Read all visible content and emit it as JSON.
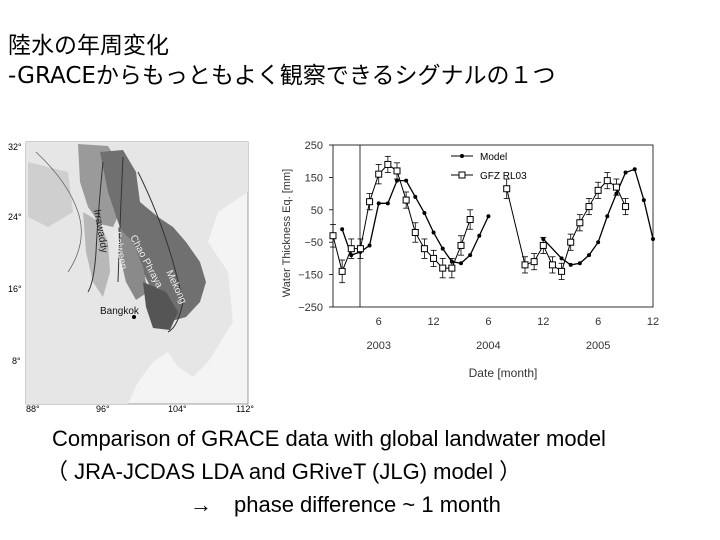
{
  "slide": {
    "title_line1": "陸水の年周変化",
    "title_line2": "-GRACEからもっともよく観察できるシグナルの１つ",
    "caption_line1": "Comparison of GRACE data with global landwater model",
    "caption_line2": "（ JRA-JCDAS LDA and GRiveT (JLG) model ）",
    "caption_line3": "→　phase difference ~ 1 month"
  },
  "map": {
    "lat_labels": [
      "32°",
      "24°",
      "16°",
      "8°"
    ],
    "lon_labels": [
      "88°",
      "96°",
      "104°",
      "112°"
    ],
    "river_labels": [
      "Irrawaddy",
      "Salween",
      "Chao Phraya",
      "Mekong"
    ],
    "city_label": "Bangkok"
  },
  "chart_data": {
    "type": "line",
    "ylabel": "Water Thickness Eq. [mm]",
    "xlabel": "Date [month]",
    "ylim": [
      -250,
      250
    ],
    "yticks": [
      250,
      150,
      50,
      -50,
      -150,
      -250
    ],
    "xlim": [
      1,
      36
    ],
    "xticks": [
      {
        "t": 6,
        "label": "6"
      },
      {
        "t": 12,
        "label": "12"
      },
      {
        "t": 18,
        "label": "6"
      },
      {
        "t": 24,
        "label": "12"
      },
      {
        "t": 30,
        "label": "6"
      },
      {
        "t": 36,
        "label": "12"
      }
    ],
    "year_labels": [
      {
        "t": 6,
        "label": "2003"
      },
      {
        "t": 18,
        "label": "2004"
      },
      {
        "t": 30,
        "label": "2005"
      }
    ],
    "legend": "top-right",
    "series": [
      {
        "name": "Model",
        "marker": "dot",
        "segments": [
          [
            [
              2,
              -10
            ],
            [
              3,
              -90
            ],
            [
              4,
              -80
            ],
            [
              5,
              -60
            ],
            [
              6,
              70
            ],
            [
              7,
              70
            ],
            [
              8,
              140
            ],
            [
              9,
              140
            ],
            [
              10,
              90
            ],
            [
              11,
              40
            ],
            [
              12,
              -20
            ],
            [
              13,
              -70
            ],
            [
              14,
              -110
            ],
            [
              15,
              -115
            ],
            [
              16,
              -90
            ],
            [
              17,
              -30
            ],
            [
              18,
              30
            ]
          ],
          [
            [
              24,
              -40
            ],
            [
              26,
              -100
            ],
            [
              27,
              -120
            ],
            [
              28,
              -115
            ],
            [
              29,
              -90
            ],
            [
              30,
              -50
            ],
            [
              31,
              30
            ],
            [
              32,
              100
            ],
            [
              33,
              165
            ],
            [
              34,
              175
            ],
            [
              35,
              80
            ],
            [
              36,
              -40
            ]
          ]
        ]
      },
      {
        "name": "GFZ RL03",
        "marker": "square",
        "segments": [
          [
            [
              1,
              -30,
              35
            ],
            [
              2,
              -140,
              35
            ],
            [
              3,
              -70,
              30
            ],
            [
              4,
              -70,
              30
            ],
            [
              5,
              75,
              25
            ],
            [
              6,
              160,
              30
            ],
            [
              7,
              190,
              25
            ],
            [
              8,
              170,
              25
            ],
            [
              9,
              80,
              25
            ],
            [
              10,
              -20,
              30
            ],
            [
              11,
              -70,
              30
            ],
            [
              12,
              -100,
              25
            ],
            [
              13,
              -130,
              30
            ],
            [
              14,
              -130,
              30
            ],
            [
              15,
              -60,
              30
            ],
            [
              16,
              20,
              30
            ]
          ],
          [
            [
              20,
              115,
              30
            ],
            [
              22,
              -120,
              25
            ],
            [
              23,
              -110,
              25
            ],
            [
              24,
              -60,
              25
            ],
            [
              25,
              -120,
              25
            ],
            [
              26,
              -140,
              25
            ],
            [
              27,
              -50,
              25
            ],
            [
              28,
              10,
              25
            ],
            [
              29,
              60,
              25
            ],
            [
              30,
              110,
              25
            ],
            [
              31,
              140,
              25
            ],
            [
              32,
              120,
              25
            ],
            [
              33,
              60,
              25
            ]
          ]
        ]
      }
    ]
  }
}
